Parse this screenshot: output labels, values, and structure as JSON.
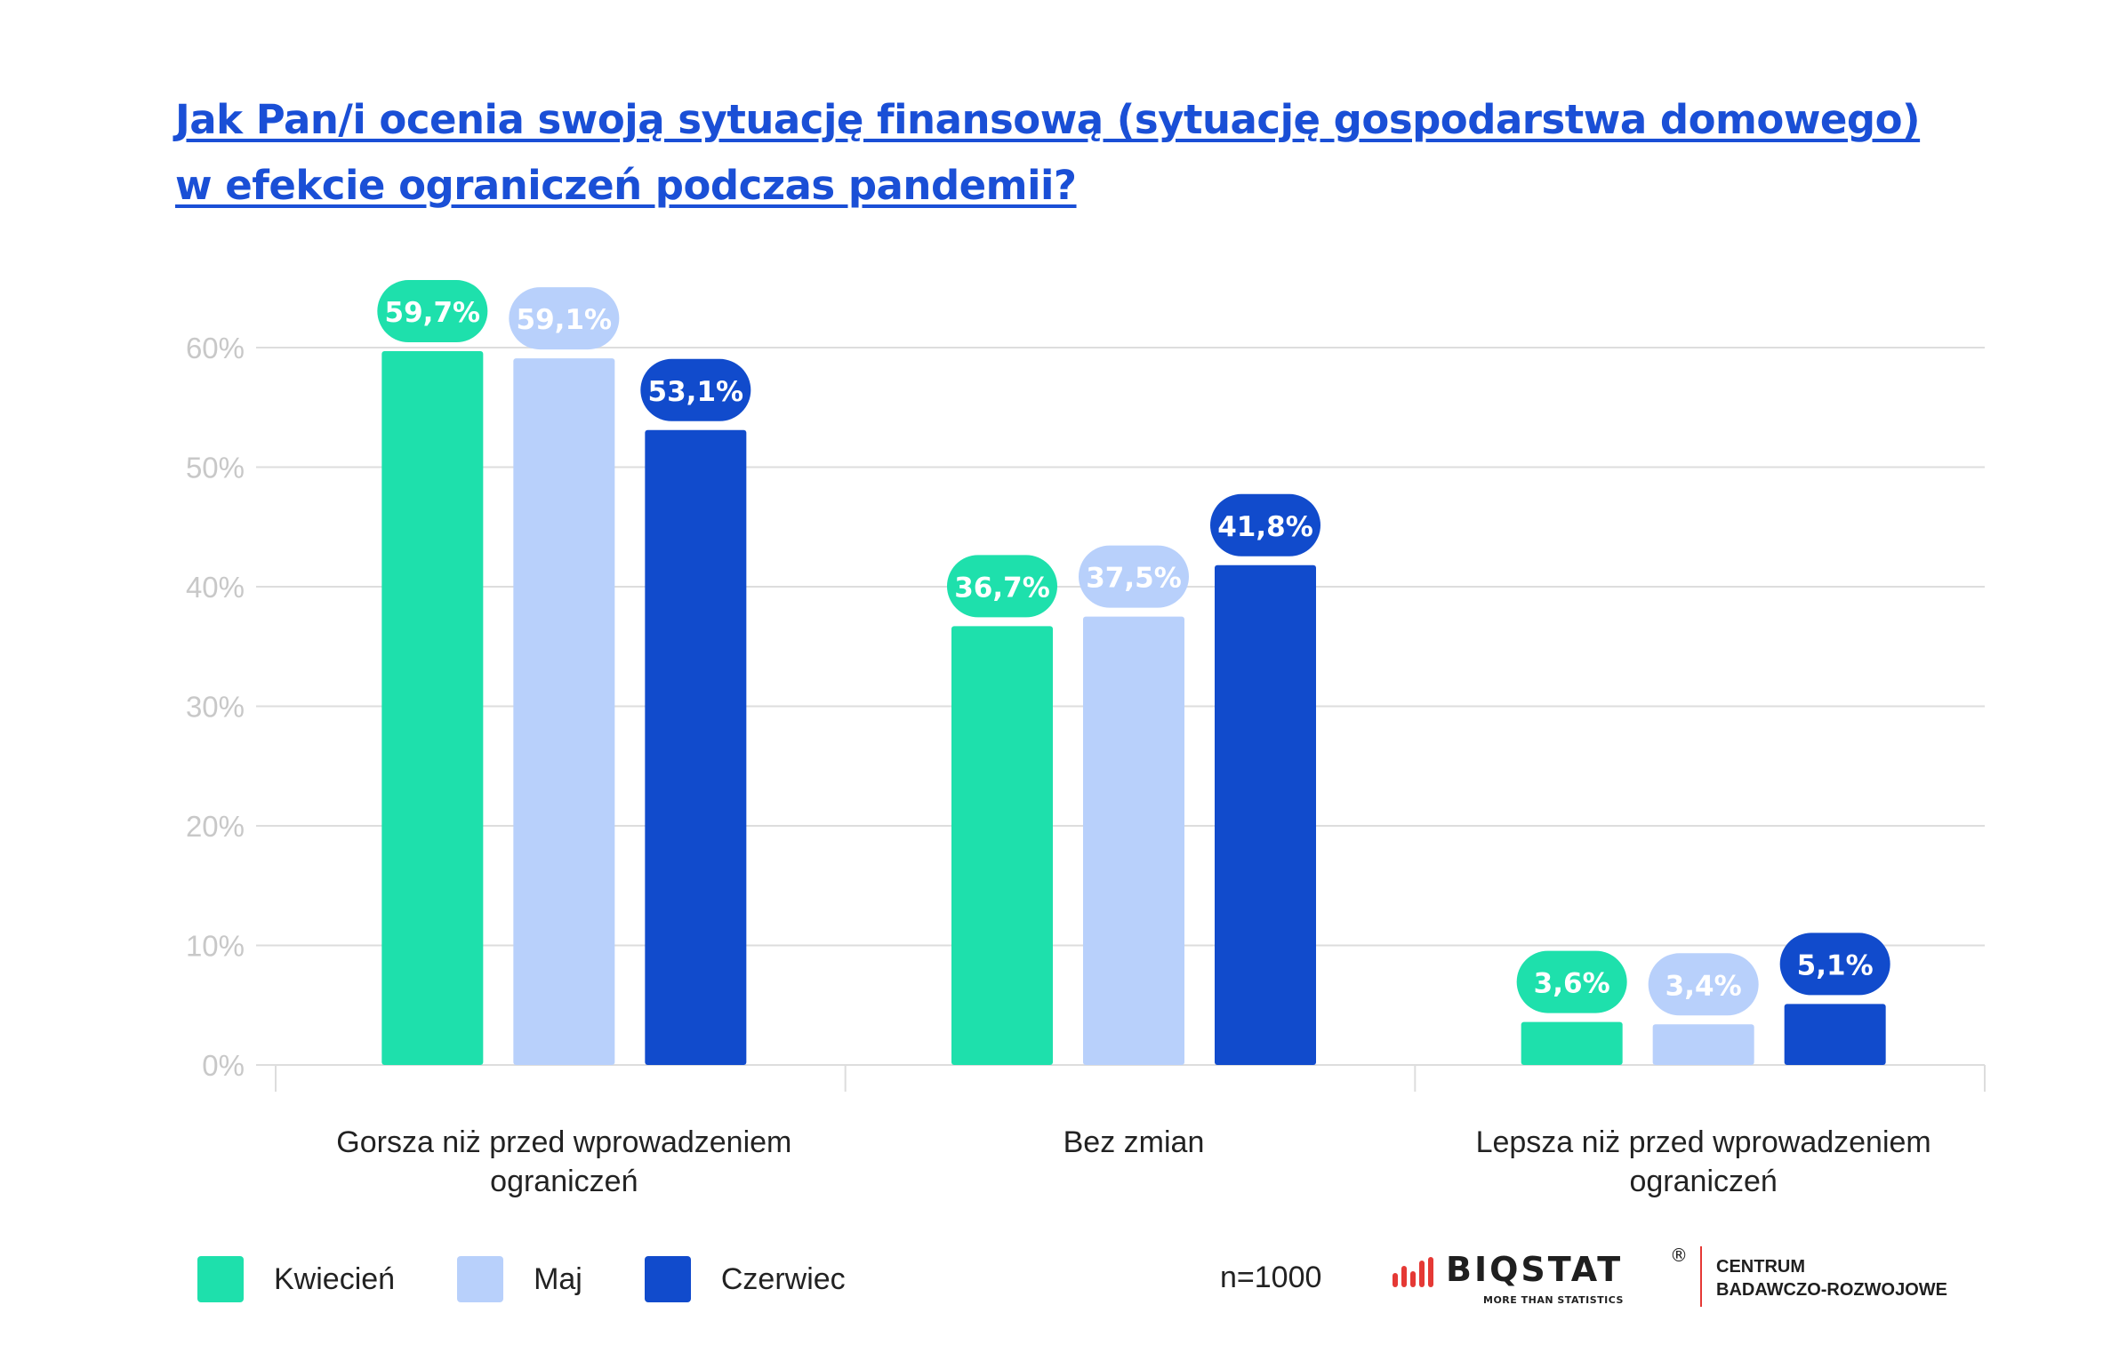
{
  "title": {
    "line1": "Jak Pan/i ocenia swoją sytuację finansową (sytuację gospodarstwa domowego)",
    "line2": "w efekcie ograniczeń podczas pandemii?"
  },
  "chart_data": {
    "type": "bar",
    "categories": [
      [
        "Gorsza niż przed wprowadzeniem",
        "ograniczeń"
      ],
      [
        "Bez zmian"
      ],
      [
        "Lepsza niż przed wprowadzeniem",
        "ograniczeń"
      ]
    ],
    "series": [
      {
        "name": "Kwiecień",
        "color": "#1ee0ac",
        "label_text_color": "#ffffff",
        "values": [
          59.7,
          36.7,
          3.6
        ],
        "labels": [
          "59,7%",
          "36,7%",
          "3,6%"
        ]
      },
      {
        "name": "Maj",
        "color": "#b8d0fb",
        "label_text_color": "#ffffff",
        "values": [
          59.1,
          37.5,
          3.4
        ],
        "labels": [
          "59,1%",
          "37,5%",
          "3,4%"
        ]
      },
      {
        "name": "Czerwiec",
        "color": "#114bcc",
        "label_text_color": "#ffffff",
        "values": [
          53.1,
          41.8,
          5.1
        ],
        "labels": [
          "53,1%",
          "41,8%",
          "5,1%"
        ]
      }
    ],
    "ylim": [
      0,
      60
    ],
    "yticks": [
      0,
      10,
      20,
      30,
      40,
      50,
      60
    ],
    "ytick_labels": [
      "0%",
      "10%",
      "20%",
      "30%",
      "40%",
      "50%",
      "60%"
    ],
    "grid": true,
    "legend_position": "bottom-left"
  },
  "footer": {
    "sample_size": "n=1000"
  },
  "logo": {
    "name": "BIQSTAT",
    "registered": "®",
    "tagline": "MORE THAN STATISTICS",
    "org_line1": "CENTRUM",
    "org_line2": "BADAWCZO-ROZWOJOWE"
  },
  "colors": {
    "title": "#1a4fd6",
    "grid": "#dddddd",
    "tick_label": "#c8c8c8",
    "logo_accent": "#e53935"
  }
}
